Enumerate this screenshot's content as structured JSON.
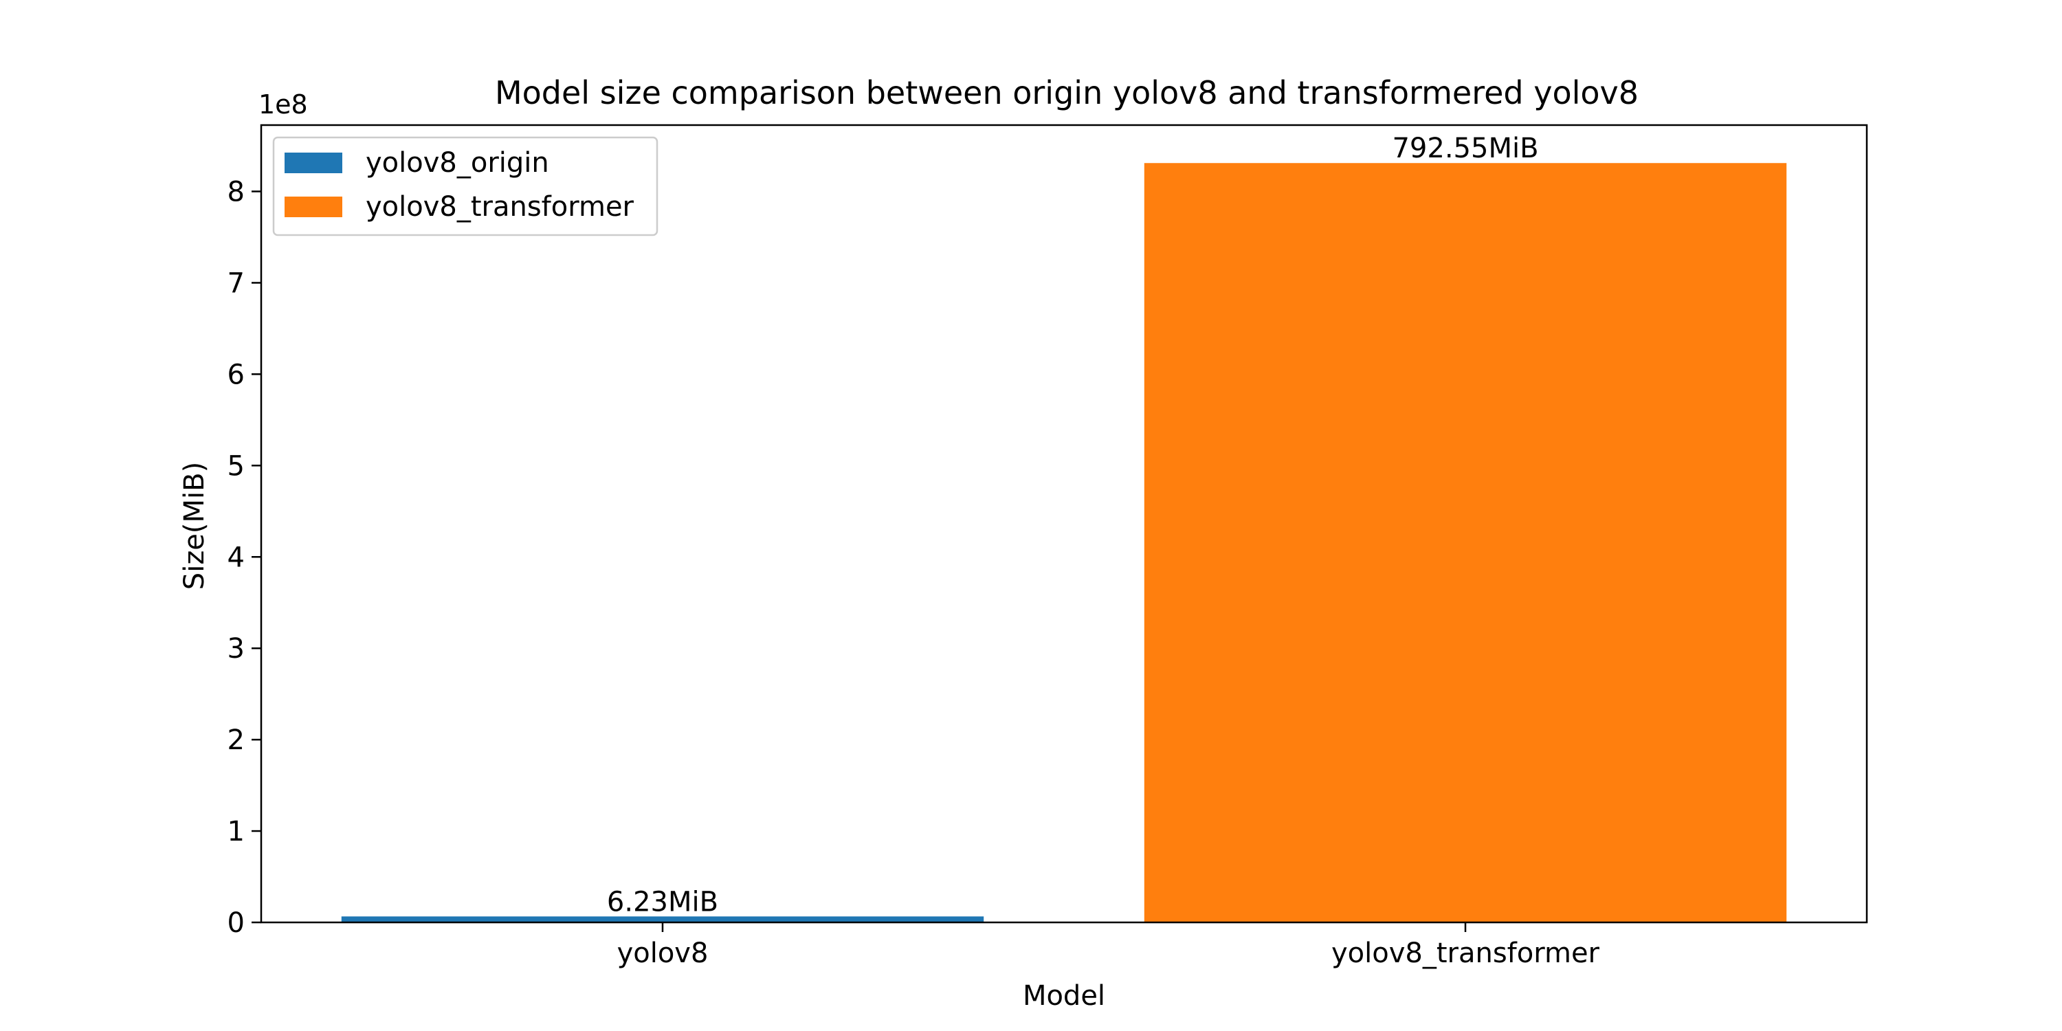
{
  "chart_data": {
    "type": "bar",
    "title": "Model size comparison between origin yolov8 and transformered yolov8",
    "xlabel": "Model",
    "ylabel": "Size(MiB)",
    "y_scale_label": "1e8",
    "categories": [
      "yolov8",
      "yolov8_transformer"
    ],
    "series": [
      {
        "name": "yolov8_origin",
        "category": "yolov8",
        "value": 6532628,
        "label": "6.23MiB",
        "color": "#1f77b4"
      },
      {
        "name": "yolov8_transformer",
        "category": "yolov8_transformer",
        "value": 831048909,
        "label": "792.55MiB",
        "color": "#ff7f0e"
      }
    ],
    "y_ticks": [
      {
        "value": 0,
        "label": "0"
      },
      {
        "value": 100000000,
        "label": "1"
      },
      {
        "value": 200000000,
        "label": "2"
      },
      {
        "value": 300000000,
        "label": "3"
      },
      {
        "value": 400000000,
        "label": "4"
      },
      {
        "value": 500000000,
        "label": "5"
      },
      {
        "value": 600000000,
        "label": "6"
      },
      {
        "value": 700000000,
        "label": "7"
      },
      {
        "value": 800000000,
        "label": "8"
      }
    ],
    "ylim": [
      0,
      872600000
    ],
    "grid": false,
    "legend_position": "top-left"
  }
}
